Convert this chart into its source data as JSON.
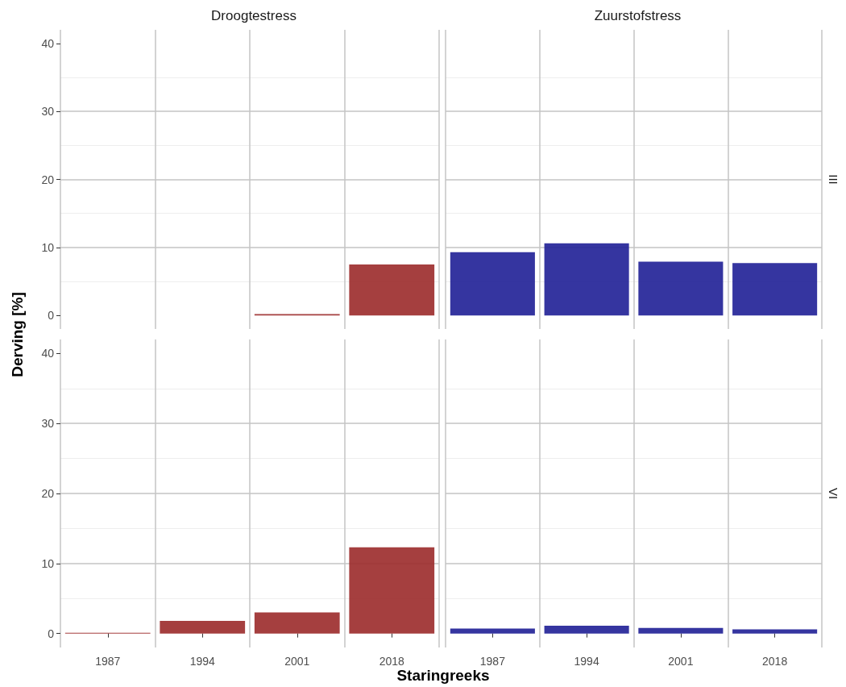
{
  "chart_data": [
    {
      "type": "bar",
      "title": "Droogtestress",
      "ylabel": "Derving [%]",
      "categories": [
        "1987",
        "1994",
        "2001",
        "2018"
      ],
      "series": [
        {
          "color": "#9b2a2a",
          "values": [
            0,
            0,
            0.2,
            7.5
          ]
        }
      ],
      "ylim": [
        -2,
        42
      ],
      "yticks": [
        0,
        10,
        20,
        30,
        40
      ],
      "grid": true,
      "tick_labels": "y"
    },
    {
      "type": "bar",
      "title": "Zuurstofstress",
      "annotations": [
        "III"
      ],
      "categories": [
        "1987",
        "1994",
        "2001",
        "2018"
      ],
      "series": [
        {
          "color": "#1f1f96",
          "values": [
            9.3,
            10.6,
            7.9,
            7.7
          ]
        }
      ],
      "ylim": [
        -2,
        42
      ],
      "yticks": [
        0,
        10,
        20,
        30,
        40
      ],
      "grid": true,
      "tick_labels": false
    },
    {
      "type": "bar",
      "xlabel": "Staringreeks",
      "categories": [
        "1987",
        "1994",
        "2001",
        "2018"
      ],
      "series": [
        {
          "color": "#9b2a2a",
          "values": [
            0.1,
            1.8,
            3.0,
            12.3
          ]
        }
      ],
      "ylim": [
        -2,
        42
      ],
      "yticks": [
        0,
        10,
        20,
        30,
        40
      ],
      "grid": true
    },
    {
      "type": "bar",
      "annotations": [
        "VI"
      ],
      "categories": [
        "1987",
        "1994",
        "2001",
        "2018"
      ],
      "series": [
        {
          "color": "#1f1f96",
          "values": [
            0.7,
            1.1,
            0.8,
            0.6
          ]
        }
      ],
      "ylim": [
        -2,
        42
      ],
      "yticks": [
        0,
        10,
        20,
        30,
        40
      ],
      "grid": true,
      "tick_labels": "x"
    }
  ]
}
